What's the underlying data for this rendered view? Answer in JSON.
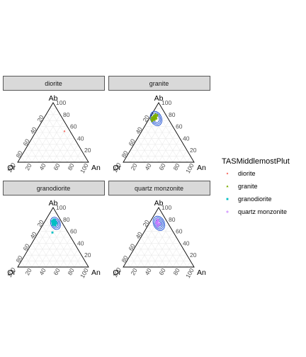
{
  "chart_data": {
    "type": "scatter",
    "subtype": "ternary",
    "axes": {
      "top": "Ab",
      "left": "Or",
      "right": "An",
      "ticks": [
        "20",
        "40",
        "60",
        "80",
        "100"
      ],
      "range": [
        0,
        100
      ],
      "grid": true
    },
    "legend": {
      "title": "TASMiddlemostPlut",
      "placement": "right",
      "entries": [
        {
          "name": "diorite",
          "color": "#f8766d",
          "symbol": "circle"
        },
        {
          "name": "granite",
          "color": "#7cae00",
          "symbol": "triangle"
        },
        {
          "name": "granodiorite",
          "color": "#00bfc4",
          "symbol": "square"
        },
        {
          "name": "quartz monzonite",
          "color": "#c77cff",
          "symbol": "plus"
        }
      ]
    },
    "panels": [
      {
        "strip": "diorite",
        "series": "diorite",
        "points": [
          {
            "ab": 52,
            "or": 8,
            "an": 40
          }
        ],
        "density_contours": []
      },
      {
        "strip": "granite",
        "series": "granite",
        "points": [
          {
            "ab": 74,
            "or": 20,
            "an": 6
          },
          {
            "ab": 76,
            "or": 18,
            "an": 6
          },
          {
            "ab": 73,
            "or": 22,
            "an": 5
          },
          {
            "ab": 78,
            "or": 16,
            "an": 6
          },
          {
            "ab": 72,
            "or": 21,
            "an": 7
          },
          {
            "ab": 75,
            "or": 19,
            "an": 6
          },
          {
            "ab": 77,
            "or": 17,
            "an": 6
          },
          {
            "ab": 71,
            "or": 23,
            "an": 6
          },
          {
            "ab": 79,
            "or": 15,
            "an": 6
          },
          {
            "ab": 74,
            "or": 18,
            "an": 8
          },
          {
            "ab": 76,
            "or": 20,
            "an": 4
          },
          {
            "ab": 73,
            "or": 19,
            "an": 8
          },
          {
            "ab": 80,
            "or": 14,
            "an": 6
          },
          {
            "ab": 70,
            "or": 24,
            "an": 6
          },
          {
            "ab": 75,
            "or": 21,
            "an": 4
          },
          {
            "ab": 77,
            "or": 15,
            "an": 8
          },
          {
            "ab": 72,
            "or": 23,
            "an": 5
          },
          {
            "ab": 78,
            "or": 18,
            "an": 4
          },
          {
            "ab": 74,
            "or": 22,
            "an": 4
          },
          {
            "ab": 76,
            "or": 16,
            "an": 8
          },
          {
            "ab": 81,
            "or": 14,
            "an": 5
          },
          {
            "ab": 69,
            "or": 25,
            "an": 6
          },
          {
            "ab": 73,
            "or": 17,
            "an": 10
          },
          {
            "ab": 75,
            "or": 17,
            "an": 8
          },
          {
            "ab": 78,
            "or": 13,
            "an": 9
          },
          {
            "ab": 71,
            "or": 20,
            "an": 9
          },
          {
            "ab": 77,
            "or": 19,
            "an": 4
          },
          {
            "ab": 74,
            "or": 16,
            "an": 10
          },
          {
            "ab": 79,
            "or": 17,
            "an": 4
          },
          {
            "ab": 72,
            "or": 25,
            "an": 3
          },
          {
            "ab": 76,
            "or": 22,
            "an": 2
          },
          {
            "ab": 80,
            "or": 12,
            "an": 8
          }
        ],
        "density_contours": [
          {
            "center": {
              "ab": 74,
              "or": 18
            },
            "radius": 8
          },
          {
            "center": {
              "ab": 74,
              "or": 18
            },
            "radius": 11
          },
          {
            "center": {
              "ab": 74,
              "or": 18
            },
            "radius": 14
          }
        ]
      },
      {
        "strip": "granodiorite",
        "series": "granodiorite",
        "points": [
          {
            "ab": 74,
            "or": 12,
            "an": 14
          },
          {
            "ab": 76,
            "or": 10,
            "an": 14
          },
          {
            "ab": 72,
            "or": 13,
            "an": 15
          },
          {
            "ab": 78,
            "or": 9,
            "an": 13
          },
          {
            "ab": 73,
            "or": 11,
            "an": 16
          },
          {
            "ab": 75,
            "or": 13,
            "an": 12
          },
          {
            "ab": 77,
            "or": 11,
            "an": 12
          },
          {
            "ab": 71,
            "or": 12,
            "an": 17
          },
          {
            "ab": 79,
            "or": 8,
            "an": 13
          },
          {
            "ab": 74,
            "or": 10,
            "an": 16
          },
          {
            "ab": 76,
            "or": 12,
            "an": 12
          },
          {
            "ab": 72,
            "or": 11,
            "an": 17
          },
          {
            "ab": 80,
            "or": 9,
            "an": 11
          },
          {
            "ab": 70,
            "or": 12,
            "an": 18
          },
          {
            "ab": 75,
            "or": 9,
            "an": 16
          },
          {
            "ab": 77,
            "or": 13,
            "an": 10
          },
          {
            "ab": 73,
            "or": 14,
            "an": 13
          },
          {
            "ab": 78,
            "or": 11,
            "an": 11
          },
          {
            "ab": 74,
            "or": 14,
            "an": 12
          },
          {
            "ab": 76,
            "or": 8,
            "an": 16
          },
          {
            "ab": 71,
            "or": 15,
            "an": 14
          },
          {
            "ab": 73,
            "or": 9,
            "an": 18
          },
          {
            "ab": 79,
            "or": 10,
            "an": 11
          },
          {
            "ab": 75,
            "or": 11,
            "an": 14
          },
          {
            "ab": 58,
            "or": 22,
            "an": 20
          }
        ],
        "density_contours": [
          {
            "center": {
              "ab": 74,
              "or": 11
            },
            "radius": 6
          },
          {
            "center": {
              "ab": 74,
              "or": 11
            },
            "radius": 9
          },
          {
            "center": {
              "ab": 74,
              "or": 11
            },
            "radius": 12
          }
        ]
      },
      {
        "strip": "quartz monzonite",
        "series": "quartz monzonite",
        "points": [
          {
            "ab": 74,
            "or": 14,
            "an": 12
          },
          {
            "ab": 76,
            "or": 13,
            "an": 11
          },
          {
            "ab": 72,
            "or": 15,
            "an": 13
          },
          {
            "ab": 78,
            "or": 12,
            "an": 10
          },
          {
            "ab": 71,
            "or": 14,
            "an": 15
          },
          {
            "ab": 75,
            "or": 15,
            "an": 10
          },
          {
            "ab": 73,
            "or": 12,
            "an": 15
          },
          {
            "ab": 77,
            "or": 14,
            "an": 9
          },
          {
            "ab": 70,
            "or": 16,
            "an": 14
          },
          {
            "ab": 79,
            "or": 11,
            "an": 10
          },
          {
            "ab": 74,
            "or": 16,
            "an": 10
          },
          {
            "ab": 72,
            "or": 13,
            "an": 15
          },
          {
            "ab": 76,
            "or": 15,
            "an": 9
          },
          {
            "ab": 68,
            "or": 18,
            "an": 14
          },
          {
            "ab": 80,
            "or": 12,
            "an": 8
          },
          {
            "ab": 73,
            "or": 17,
            "an": 10
          }
        ],
        "density_contours": [
          {
            "center": {
              "ab": 74,
              "or": 14
            },
            "radius": 5
          },
          {
            "center": {
              "ab": 74,
              "or": 14
            },
            "radius": 8
          },
          {
            "center": {
              "ab": 74,
              "or": 14
            },
            "radius": 11
          },
          {
            "center": {
              "ab": 74,
              "or": 14
            },
            "radius": 14
          }
        ]
      }
    ]
  },
  "colors": {
    "strip_fill": "#d9d9d9",
    "strip_border": "#333333",
    "grid": "#ebebeb",
    "contour": "#1a4fd6",
    "axis_text": "#4d4d4d"
  }
}
